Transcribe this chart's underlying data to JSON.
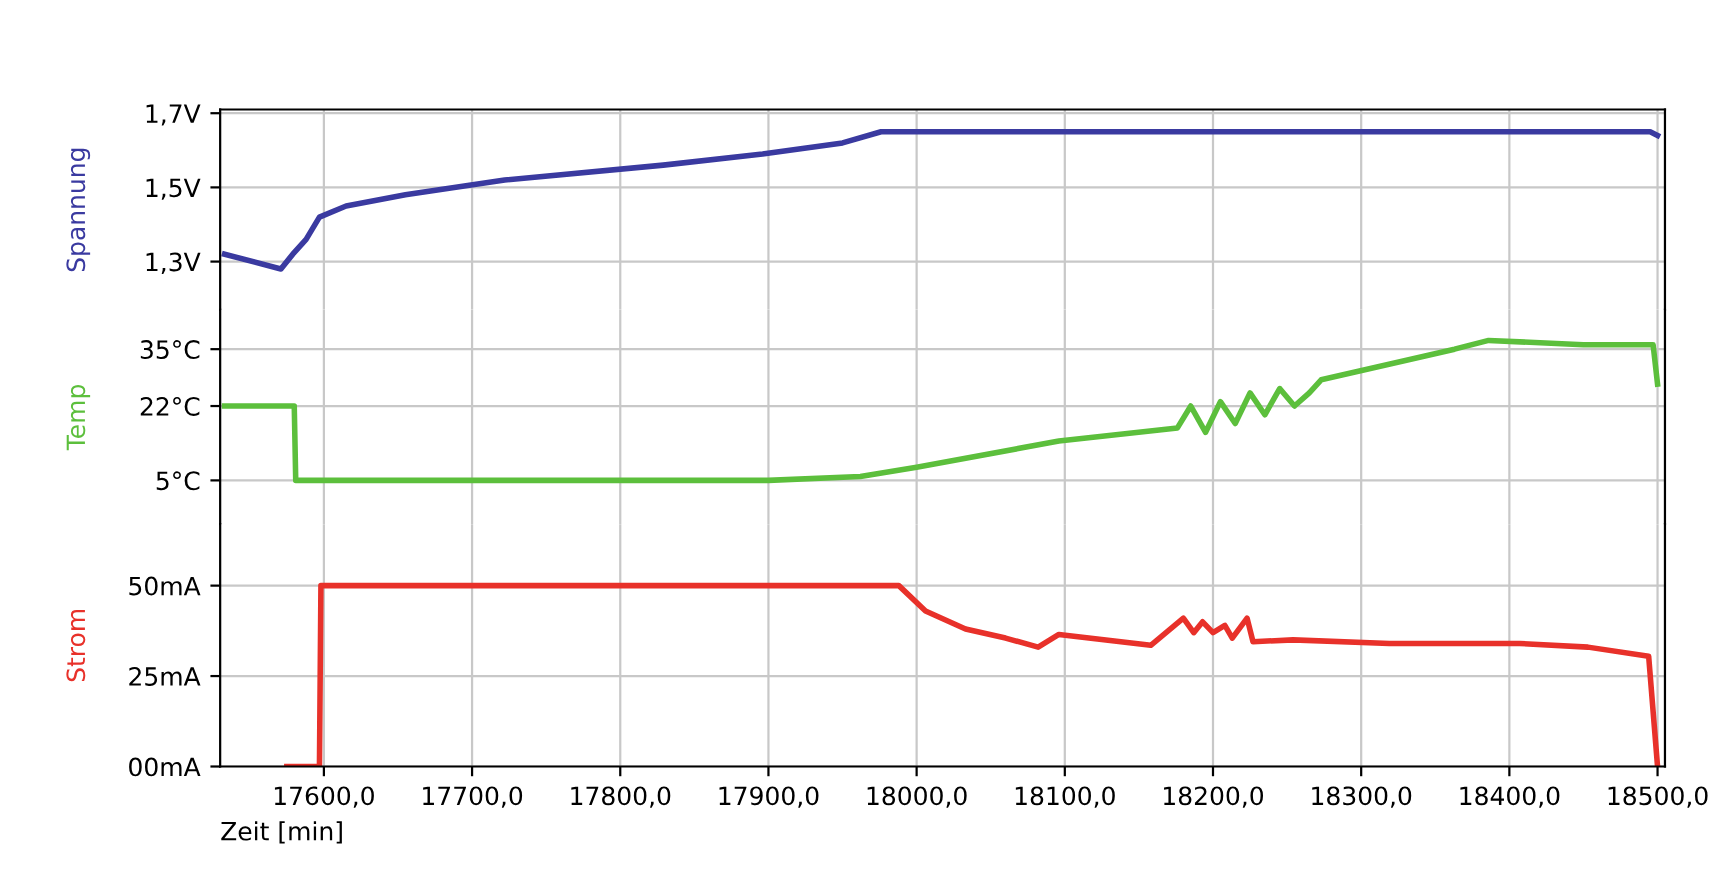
{
  "chart_data": [
    {
      "type": "line",
      "ylabel": "Spannung",
      "ylim": [
        1.17,
        1.71
      ],
      "yticks": [
        {
          "value": 1.3,
          "label": "1,3V"
        },
        {
          "value": 1.5,
          "label": "1,5V"
        },
        {
          "value": 1.7,
          "label": "1,7V"
        }
      ],
      "xlim": [
        17530,
        18505
      ],
      "xticks": [
        17600,
        17700,
        17800,
        17900,
        18000,
        18100,
        18200,
        18300,
        18400,
        18500
      ],
      "tick_labels": "y",
      "grid": true,
      "series": [
        {
          "color": "#3a3aa0",
          "x": [
            17533,
            17571,
            17579,
            17588,
            17597,
            17615,
            17655,
            17722,
            17829,
            17896,
            17950,
            17976,
            18000,
            18495,
            18500
          ],
          "values": [
            1.32,
            1.28,
            1.32,
            1.36,
            1.42,
            1.45,
            1.48,
            1.52,
            1.56,
            1.59,
            1.62,
            1.65,
            1.65,
            1.65,
            1.64
          ]
        }
      ]
    },
    {
      "type": "line",
      "ylabel": "Temp",
      "ylim": [
        -5,
        44
      ],
      "yticks": [
        {
          "value": 5,
          "label": "5°C"
        },
        {
          "value": 22,
          "label": "22°C"
        },
        {
          "value": 35,
          "label": "35°C"
        }
      ],
      "xlim": [
        17530,
        18505
      ],
      "xticks": [
        17600,
        17700,
        17800,
        17900,
        18000,
        18100,
        18200,
        18300,
        18400,
        18500
      ],
      "tick_labels": "y",
      "grid": true,
      "series": [
        {
          "color": "#5cbf3c",
          "x": [
            17533,
            17580,
            17581,
            17700,
            17800,
            17900,
            17962,
            18000,
            18096,
            18176,
            18185,
            18195,
            18205,
            18215,
            18225,
            18235,
            18245,
            18255,
            18265,
            18273,
            18363,
            18386,
            18450,
            18497,
            18500
          ],
          "values": [
            22,
            22,
            5,
            5,
            5,
            5,
            5.9,
            8,
            14,
            17,
            22,
            16,
            23,
            18,
            25,
            20,
            26,
            22,
            25,
            28,
            35,
            37,
            36,
            36,
            27
          ]
        }
      ]
    },
    {
      "type": "line",
      "ylabel": "Strom",
      "xlabel": "Zeit [min]",
      "ylim": [
        0,
        67
      ],
      "yticks": [
        {
          "value": 0,
          "label": "00mA"
        },
        {
          "value": 25,
          "label": "25mA"
        },
        {
          "value": 50,
          "label": "50mA"
        }
      ],
      "xlim": [
        17530,
        18505
      ],
      "xticks": [
        {
          "value": 17600,
          "label": "17600,0"
        },
        {
          "value": 17700,
          "label": "17700,0"
        },
        {
          "value": 17800,
          "label": "17800,0"
        },
        {
          "value": 17900,
          "label": "17900,0"
        },
        {
          "value": 18000,
          "label": "18000,0"
        },
        {
          "value": 18100,
          "label": "18100,0"
        },
        {
          "value": 18200,
          "label": "18200,0"
        },
        {
          "value": 18300,
          "label": "18300,0"
        },
        {
          "value": 18400,
          "label": "18400,0"
        },
        {
          "value": 18500,
          "label": "18500,0"
        }
      ],
      "grid": true,
      "series": [
        {
          "color": "#e8312a",
          "x": [
            17575,
            17597,
            17598,
            17988,
            18006,
            18033,
            18060,
            18082,
            18096,
            18158,
            18180,
            18187,
            18193,
            18200,
            18208,
            18213,
            18223,
            18227,
            18254,
            18319,
            18407,
            18453,
            18494,
            18500
          ],
          "values": [
            0,
            0,
            50,
            50,
            43,
            38,
            35.5,
            33,
            36.5,
            33.5,
            41,
            37,
            40,
            37,
            39,
            35.5,
            41,
            34.5,
            35,
            34,
            34,
            33,
            30.5,
            0
          ]
        }
      ]
    }
  ]
}
